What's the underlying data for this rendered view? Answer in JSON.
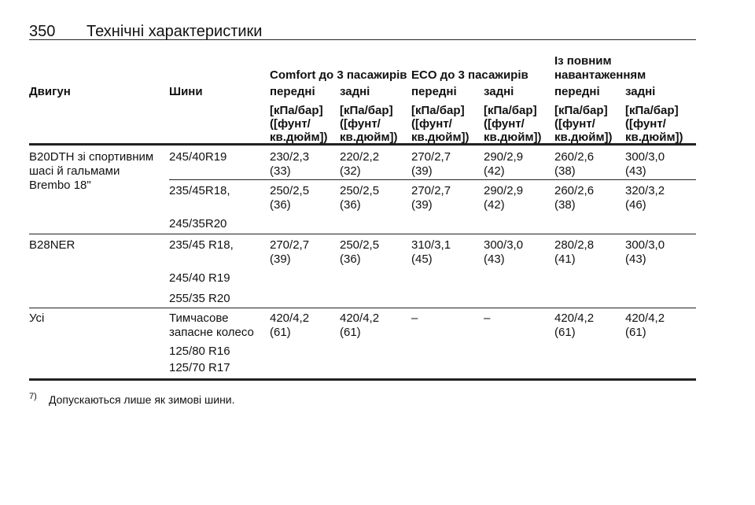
{
  "header": {
    "page_number": "350",
    "title": "Технічні характеристики"
  },
  "table": {
    "group_headers": [
      "Comfort до 3 пасажирів",
      "ECO до 3 пасажирів",
      [
        "Із повним",
        "навантаженням"
      ]
    ],
    "columns": [
      "Двигун",
      "Шини",
      "передні",
      "задні",
      "передні",
      "задні",
      "передні",
      "задні"
    ],
    "units": [
      [
        "[кПа/бар]",
        "([фунт/",
        "кв.дюйм])"
      ],
      [
        "[кПа/бар]",
        "([фунт/",
        "кв.дюйм])"
      ],
      [
        "[кПа/бар]",
        "([фунт/",
        "кв.дюйм])"
      ],
      [
        "[кПа/бар]",
        "([фунт/",
        "кв.дюйм])"
      ],
      [
        "[кПа/бар]",
        "([фунт/",
        "кв.дюйм])"
      ],
      [
        "[кПа/бар]",
        "([фунт/",
        "кв.дюйм])"
      ]
    ],
    "rows": [
      {
        "engine": [
          "B20DTH зі спортивним",
          "шасі й гальмами",
          "Brembo 18\""
        ],
        "tyres": [
          "245/40R19"
        ],
        "values": [
          [
            "230/2,3",
            "(33)"
          ],
          [
            "220/2,2",
            "(32)"
          ],
          [
            "270/2,7",
            "(39)"
          ],
          [
            "290/2,9",
            "(42)"
          ],
          [
            "260/2,6",
            "(38)"
          ],
          [
            "300/3,0",
            "(43)"
          ]
        ]
      },
      {
        "engine": [],
        "tyres": [
          "235/45R18,",
          "245/35R20"
        ],
        "values": [
          [
            "250/2,5",
            "(36)"
          ],
          [
            "250/2,5",
            "(36)"
          ],
          [
            "270/2,7",
            "(39)"
          ],
          [
            "290/2,9",
            "(42)"
          ],
          [
            "260/2,6",
            "(38)"
          ],
          [
            "320/3,2",
            "(46)"
          ]
        ]
      },
      {
        "engine": [
          "B28NER"
        ],
        "tyres": [
          "235/45 R18,",
          "245/40 R19",
          "255/35 R20"
        ],
        "values": [
          [
            "270/2,7",
            "(39)"
          ],
          [
            "250/2,5",
            "(36)"
          ],
          [
            "310/3,1",
            "(45)"
          ],
          [
            "300/3,0",
            "(43)"
          ],
          [
            "280/2,8",
            "(41)"
          ],
          [
            "300/3,0",
            "(43)"
          ]
        ]
      },
      {
        "engine": [
          "Усі"
        ],
        "tyres": [
          "Тимчасове",
          "запасне колесо",
          "125/80 R16",
          "125/70 R17"
        ],
        "values": [
          [
            "420/4,2",
            "(61)"
          ],
          [
            "420/4,2",
            "(61)"
          ],
          [
            "–"
          ],
          [
            "–"
          ],
          [
            "420/4,2",
            "(61)"
          ],
          [
            "420/4,2",
            "(61)"
          ]
        ]
      }
    ]
  },
  "footnote": {
    "marker": "7)",
    "text": "Допускаються лише як зимові шини."
  }
}
